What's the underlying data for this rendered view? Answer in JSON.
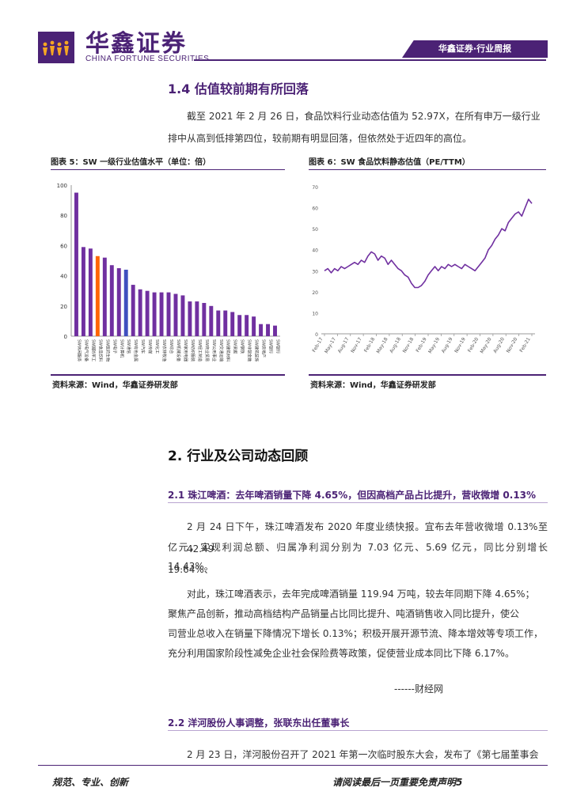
{
  "header": {
    "logo_cn": "华鑫证券",
    "logo_en": "CHINA FORTUNE SECURITIES",
    "tag": "华鑫证券·行业周报"
  },
  "section_1_4": {
    "title": "1.4 估值较前期有所回落",
    "para_line1": "截至 2021 年 2 月 26 日，食品饮料行业动态估值为 52.97X，在所有申万一级行业",
    "para_line2": "排中从高到低排第四位，较前期有明显回落，但依然处于近四年的高位。"
  },
  "figure5": {
    "title": "图表 5：SW 一级行业估值水平（单位：倍）",
    "source": "资料来源：Wind，华鑫证券研发部"
  },
  "figure6": {
    "title": "图表 6：SW 食品饮料静态估值（PE/TTM）",
    "source": "资料来源：Wind，华鑫证券研发部"
  },
  "chart_data": [
    {
      "type": "bar",
      "ylim": [
        0,
        100
      ],
      "yticks": [
        "0",
        "20",
        "40",
        "60",
        "80",
        "100"
      ],
      "values": [
        95,
        59,
        58,
        53,
        52,
        47,
        45,
        44,
        34,
        31,
        30,
        29,
        29,
        29,
        28,
        27,
        23,
        23,
        22,
        20,
        17,
        17,
        16,
        14,
        14,
        13,
        8,
        8,
        7
      ],
      "categories": [
        "SW休闲服务",
        "SW电气设备",
        "SW国防军工",
        "SW食品饮料",
        "SW医药生物",
        "SW电子",
        "SW计算机",
        "SW通信",
        "SW有色金属",
        "SW汽车",
        "SW传媒",
        "SW化工",
        "SW农林牧渔",
        "SW综合",
        "SW机械设备",
        "SW家用电器",
        "SW纺织服装",
        "SW轻工制造",
        "SW商业贸易",
        "SW公用事业",
        "SW交通运输",
        "SW建筑材料",
        "SW采掘",
        "SW钢铁",
        "SW非银金融",
        "SW建筑装饰",
        "SW房地产",
        "SW银行",
        "SW银行"
      ],
      "bar_color": "#7030a0",
      "highlight": {
        "index": 3,
        "color": "#ff6600"
      },
      "highlight2": {
        "index": 7,
        "color": "#3f4fbf"
      }
    },
    {
      "type": "line",
      "ylim": [
        0,
        70
      ],
      "yticks": [
        "0",
        "10",
        "20",
        "30",
        "40",
        "50",
        "60",
        "70"
      ],
      "xticks": [
        "Feb-17",
        "May-17",
        "Aug-17",
        "Nov-17",
        "Feb-18",
        "May-18",
        "Aug-18",
        "Nov-18",
        "Feb-19",
        "May-19",
        "Aug-19",
        "Nov-19",
        "Feb-20",
        "May-20",
        "Aug-20",
        "Nov-20",
        "Feb-21"
      ],
      "series": [
        {
          "color": "#7030a0",
          "values": [
            30,
            31,
            29,
            31,
            30,
            32,
            31,
            32,
            33,
            34,
            33,
            35,
            34,
            37,
            39,
            38,
            35,
            37,
            36,
            33,
            35,
            33,
            31,
            30,
            28,
            27,
            24,
            22,
            22,
            23,
            25,
            28,
            30,
            32,
            30,
            32,
            31,
            33,
            32,
            33,
            32,
            31,
            33,
            32,
            31,
            30,
            32,
            34,
            36,
            40,
            42,
            45,
            47,
            50,
            49,
            53,
            55,
            57,
            58,
            56,
            60,
            64,
            62
          ]
        }
      ]
    }
  ],
  "section_2": {
    "title": "2. 行业及公司动态回顾"
  },
  "section_2_1": {
    "title": "2.1 珠江啤酒：去年啤酒销量下降 4.65%，但因高档产品占比提升，营收微增 0.13%",
    "p1_line1": "2 月 24 日下午，珠江啤酒发布 2020 年度业绩快报。宜布去年营收微增 0.13%至 42.49",
    "p1_line2": "亿元，实现利润总额、归属净利润分别为 7.03 亿元、5.69 亿元，同比分别增长 19.64%、",
    "p1_line3": "14.43%。",
    "p2_line1": "对此，珠江啤酒表示，去年完成啤酒销量 119.94 万吨，较去年同期下降 4.65%；",
    "p2_line2": "聚焦产品创新，推动高档结构产品销量占比同比提升、吨酒销售收入同比提升，使公",
    "p2_line3": "司营业总收入在销量下降情况下增长 0.13%；积极开展开源节流、降本增效等专项工作，",
    "p2_line4": "充分利用国家阶段性减免企业社会保险费等政策，促使营业成本同比下降 6.17%。",
    "source": "------财经网"
  },
  "section_2_2": {
    "title": "2.2 洋河股份人事调整，张联东出任董事长",
    "p1_line1": "2 月 23 日，洋河股份召开了 2021 年第一次临时股东大会，发布了《第七届董事会"
  },
  "footer": {
    "left": "规范、专业、创新",
    "right": "请阅读最后一页重要免责声明5"
  }
}
